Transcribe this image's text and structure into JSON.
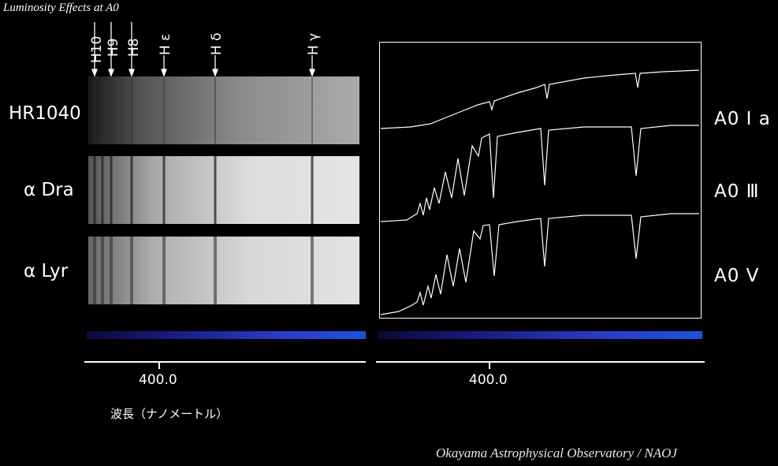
{
  "title": "Luminosity Effects at A0",
  "credit": "Okayama Astrophysical Observatory / NAOJ",
  "line_labels": [
    "H10",
    "H9",
    "H8",
    "H ε",
    "H δ",
    "H γ"
  ],
  "stars": [
    "HR1040",
    "α Dra",
    "α Lyr"
  ],
  "classes": [
    "A0 I a",
    "A0 Ⅲ",
    "A0 Ⅴ"
  ],
  "axis_tick": "400.0",
  "axis_label": "波長（ナノメートル）",
  "colors": {
    "background": "#000000",
    "trace": "#ffffff"
  }
}
